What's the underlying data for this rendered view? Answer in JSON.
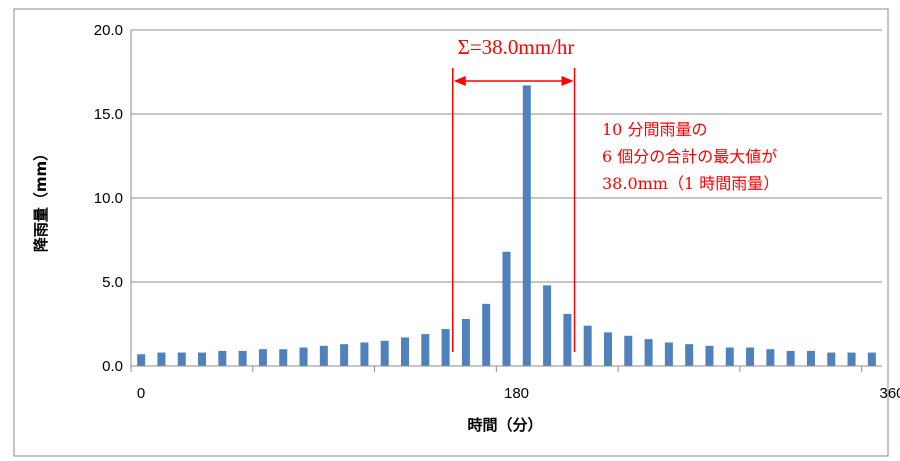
{
  "chart_data": {
    "type": "bar",
    "title": "",
    "xlabel": "時間（分）",
    "ylabel": "降雨量（mm）",
    "ylim": [
      0,
      20
    ],
    "yticks": [
      "0.0",
      "5.0",
      "10.0",
      "15.0",
      "20.0"
    ],
    "xlim": [
      0,
      360
    ],
    "xticks": [
      {
        "value": 0,
        "label": "0"
      },
      {
        "value": 180,
        "label": "180"
      },
      {
        "value": 360,
        "label": "360"
      }
    ],
    "grid": true,
    "legend": "none",
    "bar_color": "#4f81bd",
    "series": [
      {
        "values": [
          0.7,
          0.8,
          0.8,
          0.8,
          0.9,
          0.9,
          1.0,
          1.0,
          1.1,
          1.2,
          1.3,
          1.4,
          1.5,
          1.7,
          1.9,
          2.2,
          2.8,
          3.7,
          6.8,
          16.7,
          4.8,
          3.1,
          2.4,
          2.0,
          1.8,
          1.6,
          1.4,
          1.3,
          1.2,
          1.1,
          1.1,
          1.0,
          0.9,
          0.9,
          0.8,
          0.8,
          0.8
        ]
      }
    ],
    "annotations": {
      "sum_label": "Σ=38.0mm/hr",
      "note_lines": [
        "10 分間雨量の",
        "6 個分の合計の最大値が",
        "38.0mm（1 時間雨量）"
      ],
      "span_start_bar": 16,
      "span_end_bar": 21,
      "color": "#ff0000"
    }
  }
}
